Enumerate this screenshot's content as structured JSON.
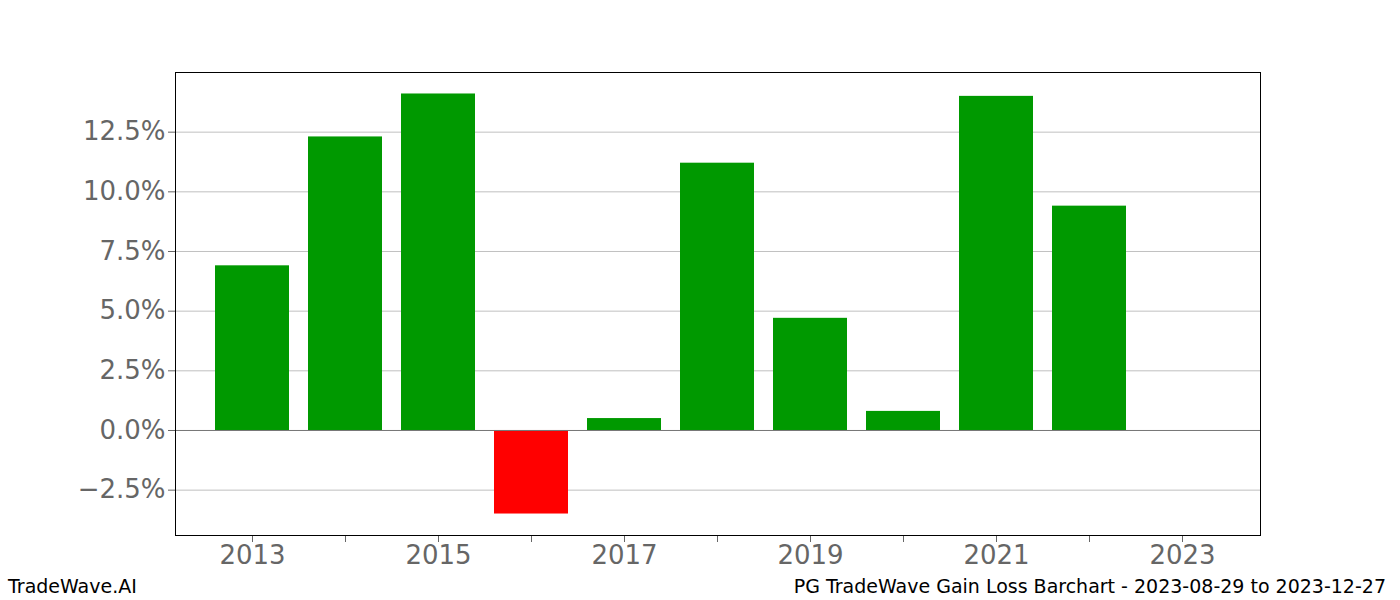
{
  "chart_data": {
    "type": "bar",
    "source": "TradeWave.AI",
    "caption": "PG TradeWave Gain Loss Barchart - 2023-08-29 to 2023-12-27",
    "categories": [
      "2013",
      null,
      "2015",
      null,
      "2017",
      null,
      "2019",
      null,
      "2021",
      null,
      "2023"
    ],
    "values": [
      6.9,
      12.3,
      14.1,
      -3.5,
      0.5,
      11.2,
      4.7,
      0.8,
      14.0,
      9.4,
      null
    ],
    "colors": [
      "#009900",
      "#009900",
      "#009900",
      "#ff0000",
      "#009900",
      "#009900",
      "#009900",
      "#009900",
      "#009900",
      "#009900",
      null
    ],
    "ylim": [
      -4.4,
      15.0
    ],
    "yticks": [
      {
        "value": -2.5,
        "label": "−2.5%"
      },
      {
        "value": 0,
        "label": "0.0%"
      },
      {
        "value": 2.5,
        "label": "2.5%"
      },
      {
        "value": 5,
        "label": "5.0%"
      },
      {
        "value": 7.5,
        "label": "7.5%"
      },
      {
        "value": 10,
        "label": "10.0%"
      },
      {
        "value": 12.5,
        "label": "12.5%"
      }
    ],
    "grid": true
  }
}
